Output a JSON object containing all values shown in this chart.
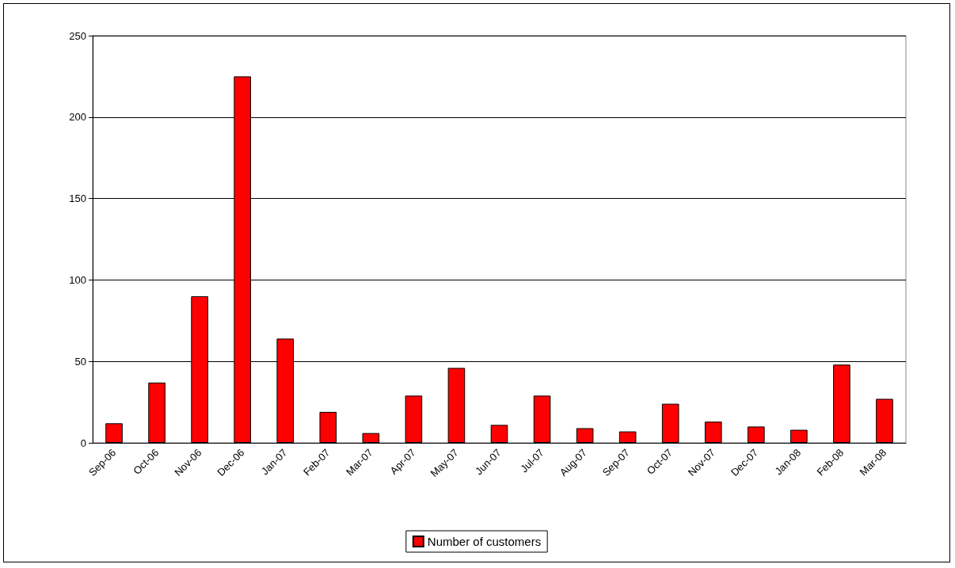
{
  "chart_data": {
    "type": "bar",
    "categories": [
      "Sep-06",
      "Oct-06",
      "Nov-06",
      "Dec-06",
      "Jan-07",
      "Feb-07",
      "Mar-07",
      "Apr-07",
      "May-07",
      "Jun-07",
      "Jul-07",
      "Aug-07",
      "Sep-07",
      "Oct-07",
      "Nov-07",
      "Dec-07",
      "Jan-08",
      "Feb-08",
      "Mar-08"
    ],
    "series": [
      {
        "name": "Number of customers",
        "color": "#ff0000",
        "values": [
          12,
          37,
          90,
          225,
          64,
          19,
          6,
          29,
          46,
          11,
          29,
          9,
          7,
          24,
          13,
          10,
          8,
          48,
          27
        ]
      }
    ],
    "ylim": [
      0,
      250
    ],
    "yticks": [
      0,
      50,
      100,
      150,
      200,
      250
    ],
    "grid": "y",
    "legend": "bottom"
  }
}
